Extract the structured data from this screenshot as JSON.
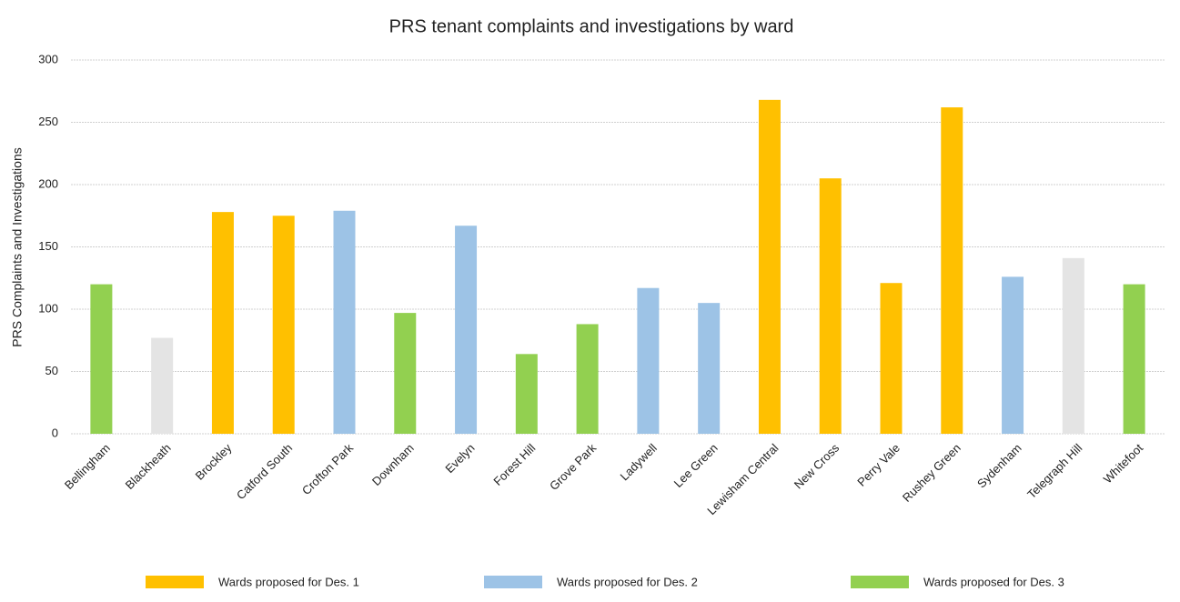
{
  "chart_data": {
    "type": "bar",
    "title": "PRS tenant complaints and investigations by ward",
    "ylabel": "PRS Complaints and Investigations",
    "categories": [
      "Bellingham",
      "Blackheath",
      "Brockley",
      "Catford South",
      "Crofton Park",
      "Downham",
      "Evelyn",
      "Forest Hill",
      "Grove Park",
      "Ladywell",
      "Lee Green",
      "Lewisham Central",
      "New Cross",
      "Perry Vale",
      "Rushey Green",
      "Sydenham",
      "Telegraph Hill",
      "Whitefoot"
    ],
    "values": [
      120,
      77,
      178,
      175,
      179,
      97,
      167,
      64,
      88,
      117,
      105,
      268,
      205,
      121,
      262,
      126,
      141,
      120
    ],
    "colors": [
      "#92d050",
      "#e4e4e4",
      "#ffc000",
      "#ffc000",
      "#9dc3e6",
      "#92d050",
      "#9dc3e6",
      "#92d050",
      "#92d050",
      "#9dc3e6",
      "#9dc3e6",
      "#ffc000",
      "#ffc000",
      "#ffc000",
      "#ffc000",
      "#9dc3e6",
      "#e4e4e4",
      "#92d050"
    ],
    "legend": [
      {
        "name": "Wards proposed for Des. 1",
        "color": "#ffc000"
      },
      {
        "name": "Wards proposed for Des. 2",
        "color": "#9dc3e6"
      },
      {
        "name": "Wards proposed for Des. 3",
        "color": "#92d050"
      }
    ],
    "legend_position": "bottom",
    "ylim": [
      0,
      300
    ],
    "yticks": [
      0,
      50,
      100,
      150,
      200,
      250,
      300
    ],
    "grid": true
  }
}
